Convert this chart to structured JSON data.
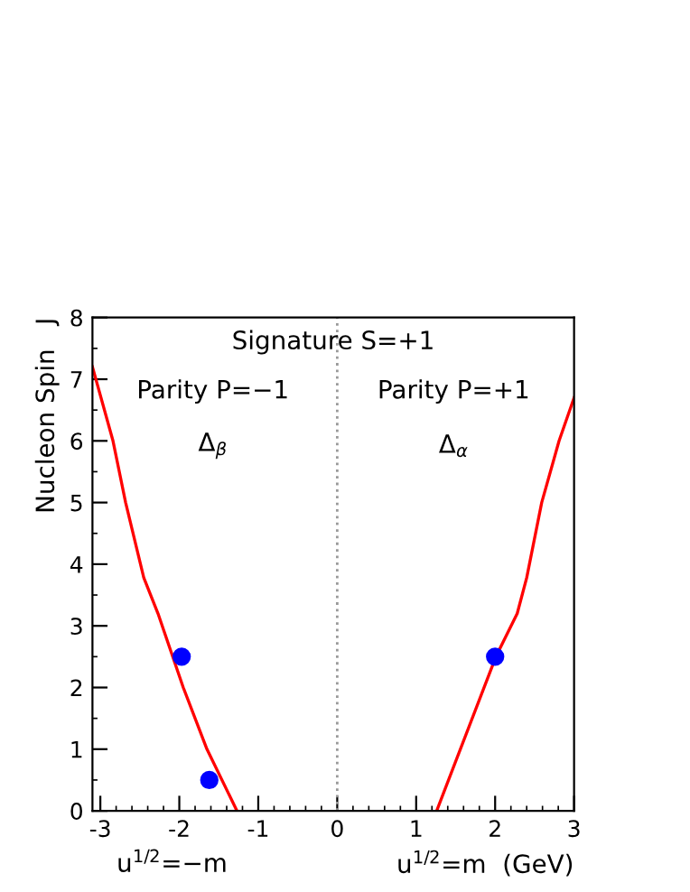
{
  "chart_data": {
    "type": "line",
    "title": "Signature S=+1",
    "xlabel": "u$^{1/2}$=m  (GeV)",
    "ylabel": "Nucleon Spin   J",
    "annotations": [
      "Parity P=−1",
      "Δ$_{β}$",
      "Parity P=+1",
      "Δ$_{α}$",
      "u$^{1/2}$=−m"
    ],
    "series": [
      {
        "color": "#ff0000",
        "x": [
          -3.1,
          -2.84,
          -2.68,
          -2.45,
          -2.27,
          -1.95,
          -1.65,
          -1.27
        ],
        "values": [
          7.2,
          6,
          5,
          3.78,
          3.2,
          2,
          1,
          0
        ]
      },
      {
        "color": "#ff0000",
        "x": [
          1.26,
          2.01,
          2.28,
          2.4,
          2.59,
          2.81,
          3.0
        ],
        "values": [
          0,
          2.5,
          3.2,
          3.78,
          5,
          6,
          6.7
        ]
      },
      {
        "type": "scatter",
        "color": "#0000ff",
        "x": [
          -1.97,
          -1.62,
          2.0
        ],
        "values": [
          2.5,
          0.5,
          2.5
        ]
      }
    ],
    "ref_lines": [
      {
        "axis": "x",
        "value": 0,
        "color": "#999999",
        "line_style": "dotted"
      }
    ],
    "xlim": [
      -3.1,
      3
    ],
    "ylim": [
      0,
      8
    ],
    "xticks": [
      -3,
      -2,
      -1,
      0,
      1,
      2,
      3
    ],
    "yticks": [
      0,
      1,
      2,
      3,
      4,
      5,
      6,
      7,
      8
    ],
    "grid": false,
    "legend": false
  }
}
